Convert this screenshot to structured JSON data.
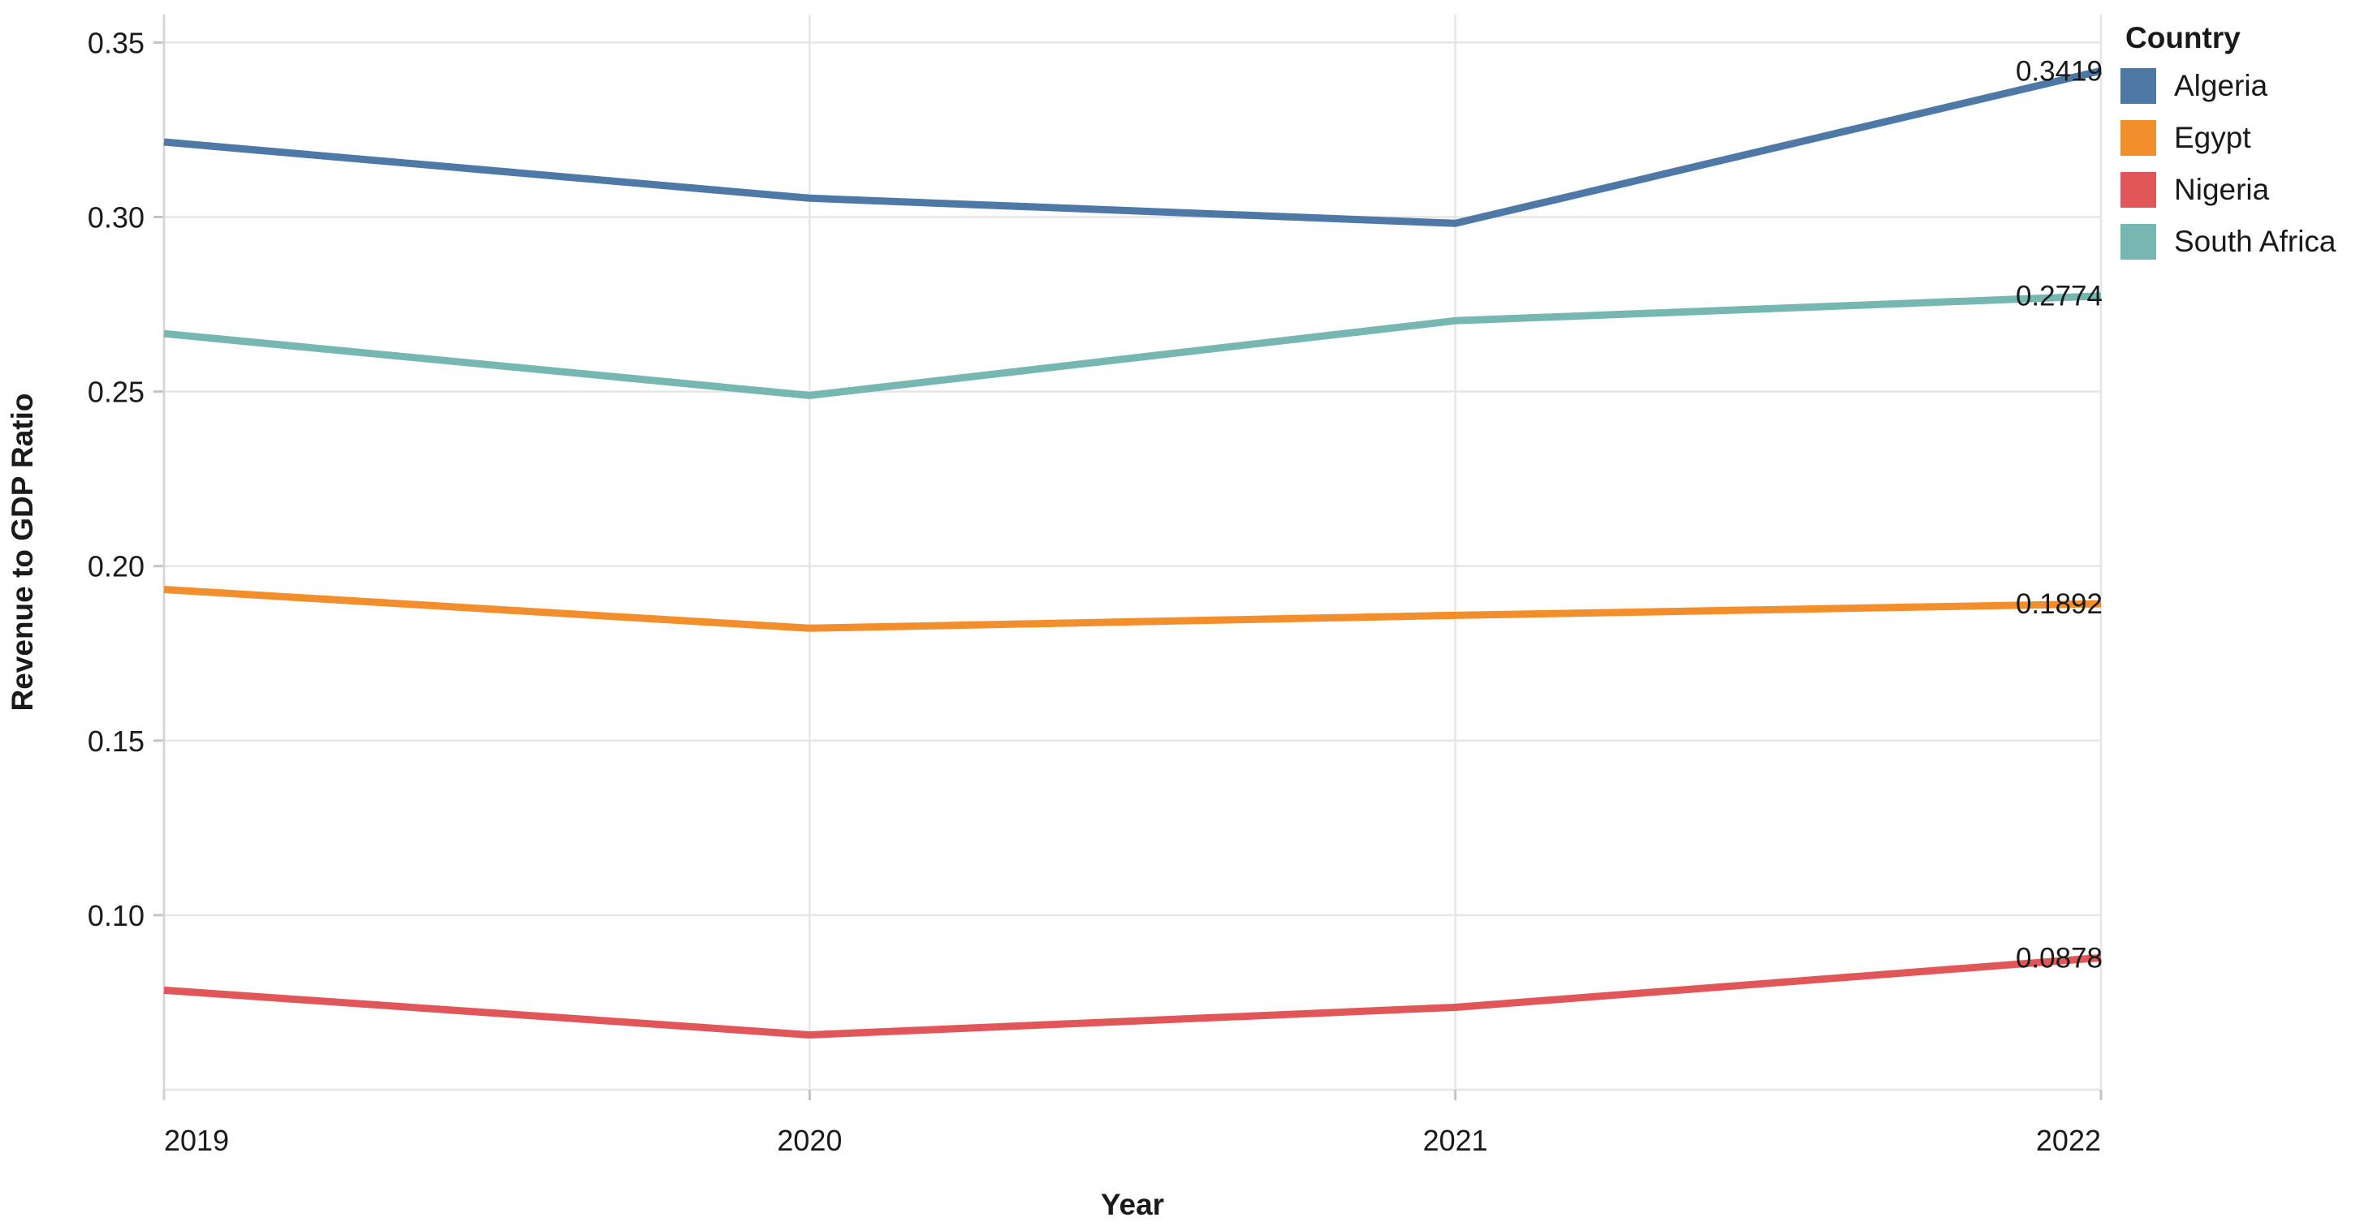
{
  "chart_data": {
    "type": "line",
    "title": "",
    "xlabel": "Year",
    "ylabel": "Revenue to GDP Ratio",
    "x": [
      "2019",
      "2020",
      "2021",
      "2022"
    ],
    "ylim": [
      0.05,
      0.358
    ],
    "yticks": [
      {
        "value": 0.05,
        "label": ""
      },
      {
        "value": 0.1,
        "label": "0.10"
      },
      {
        "value": 0.15,
        "label": "0.15"
      },
      {
        "value": 0.2,
        "label": "0.20"
      },
      {
        "value": 0.25,
        "label": "0.25"
      },
      {
        "value": 0.3,
        "label": "0.30"
      },
      {
        "value": 0.35,
        "label": "0.35"
      }
    ],
    "grid": true,
    "legend_title": "Country",
    "legend_position": "top-right",
    "series": [
      {
        "name": "Algeria",
        "color": "#4e79a7",
        "values": [
          0.3215,
          0.3054,
          0.2982,
          0.3419
        ],
        "end_label": "0.3419"
      },
      {
        "name": "Egypt",
        "color": "#f28e2b",
        "values": [
          0.1933,
          0.1822,
          0.1859,
          0.1892
        ],
        "end_label": "0.1892"
      },
      {
        "name": "Nigeria",
        "color": "#e15759",
        "values": [
          0.0785,
          0.0657,
          0.0736,
          0.0878
        ],
        "end_label": "0.0878"
      },
      {
        "name": "South Africa",
        "color": "#76b7b2",
        "values": [
          0.2666,
          0.2489,
          0.2703,
          0.2774
        ],
        "end_label": "0.2774"
      }
    ],
    "style": {
      "grid_color": "#e6e6e6",
      "tick_color": "#c4c4c4",
      "domain_color": "#d4d4d4",
      "text_color": "#1a1a1a",
      "line_width": 9
    }
  }
}
